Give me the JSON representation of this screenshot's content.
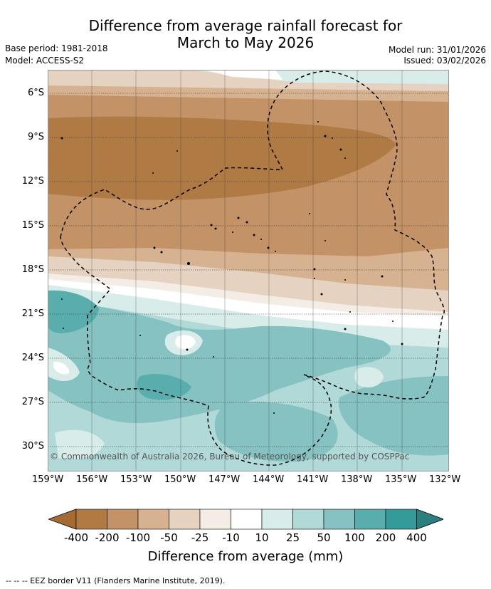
{
  "header": {
    "title_line1": "Difference from average rainfall forecast for",
    "title_line2": "March to May 2026",
    "base_period": "Base period: 1981-2018",
    "model": "Model: ACCESS-S2",
    "model_run": "Model run: 31/01/2026",
    "issued": "Issued: 03/02/2026"
  },
  "map": {
    "copyright": "© Commonwealth of Australia 2026, Bureau of Meteorology, supported by COSPPac",
    "lat_labels": [
      "6°S",
      "9°S",
      "12°S",
      "15°S",
      "18°S",
      "21°S",
      "24°S",
      "27°S",
      "30°S"
    ],
    "lon_labels": [
      "159°W",
      "156°W",
      "153°W",
      "150°W",
      "147°W",
      "144°W",
      "141°W",
      "138°W",
      "135°W",
      "132°W"
    ]
  },
  "colorbar": {
    "labels": [
      "-400",
      "-200",
      "-100",
      "-50",
      "-25",
      "-10",
      "10",
      "25",
      "50",
      "100",
      "200",
      "400"
    ],
    "colors": [
      "#a66a33",
      "#b07a44",
      "#c39367",
      "#d6b291",
      "#e6d2c0",
      "#f3ede6",
      "#ffffff",
      "#d8ecea",
      "#b0d9d7",
      "#85c2c1",
      "#5aadad",
      "#359a9a",
      "#2b7f80"
    ],
    "title": "Difference from average (mm)"
  },
  "footnote": "--  --  -- EEZ border V11 (Flanders Marine Institute, 2019)."
}
